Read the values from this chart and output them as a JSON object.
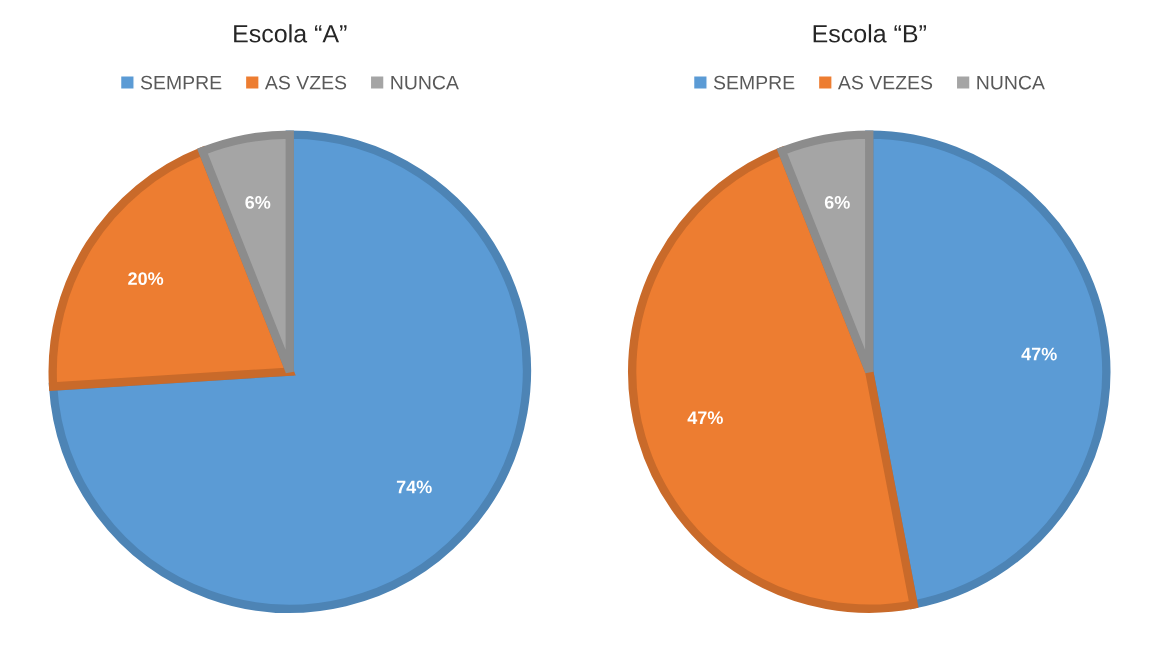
{
  "chart_data": [
    {
      "type": "pie",
      "title": "Escola “A”",
      "categories": [
        "SEMPRE",
        "AS VZES",
        "NUNCA"
      ],
      "values": [
        74,
        20,
        6
      ],
      "value_labels": [
        "74%",
        "20%",
        "6%"
      ],
      "colors": [
        "#5b9bd5",
        "#ed7d31",
        "#a5a5a5"
      ],
      "legend": "top"
    },
    {
      "type": "pie",
      "title": "Escola “B”",
      "categories": [
        "SEMPRE",
        "AS VEZES",
        "NUNCA"
      ],
      "values": [
        47,
        47,
        6
      ],
      "value_labels": [
        "47%",
        "47%",
        "6%"
      ],
      "colors": [
        "#5b9bd5",
        "#ed7d31",
        "#a5a5a5"
      ],
      "legend": "top"
    }
  ]
}
